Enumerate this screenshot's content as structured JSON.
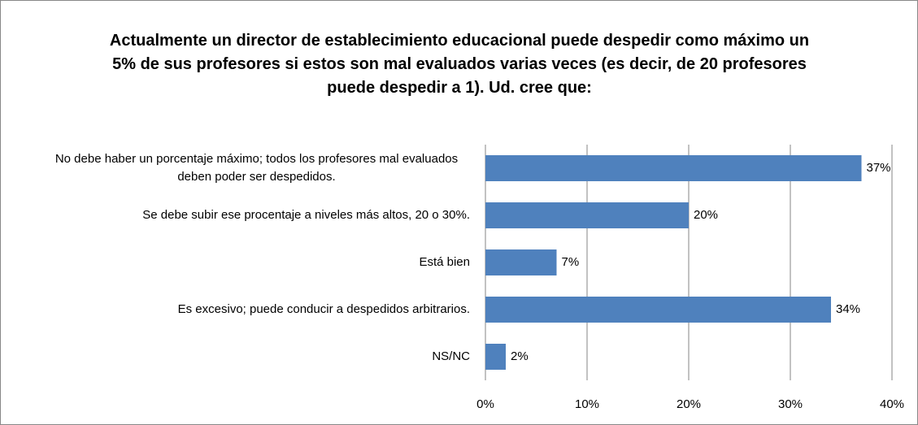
{
  "chart_data": {
    "type": "barh",
    "title": "Actualmente un director de establecimiento educacional puede despedir como máximo un 5% de sus profesores si estos son mal evaluados varias veces (es decir, de 20 profesores puede despedir a 1). Ud. cree que:",
    "categories": [
      "No debe haber un porcentaje máximo; todos los profesores mal evaluados deben poder ser despedidos.",
      "Se debe subir ese procentaje a niveles más altos, 20 o 30%.",
      "Está bien",
      "Es excesivo; puede conducir a despedidos arbitrarios.",
      "NS/NC"
    ],
    "values": [
      37,
      20,
      7,
      34,
      2
    ],
    "value_labels": [
      "37%",
      "20%",
      "7%",
      "34%",
      "2%"
    ],
    "color": "#4f81bd",
    "xlim": [
      0,
      40
    ],
    "xticks": [
      {
        "value": 0,
        "label": "0%"
      },
      {
        "value": 10,
        "label": "10%"
      },
      {
        "value": 20,
        "label": "20%"
      },
      {
        "value": 30,
        "label": "30%"
      },
      {
        "value": 40,
        "label": "40%"
      }
    ],
    "grid": true
  }
}
